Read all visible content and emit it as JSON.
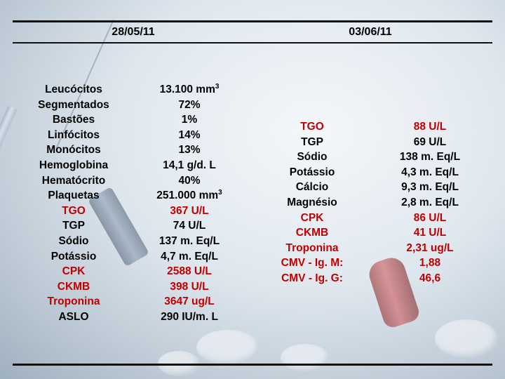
{
  "dates": {
    "first": "28/05/11",
    "second": "03/06/11"
  },
  "colors": {
    "highlight": "#c00000",
    "text": "#000000"
  },
  "table1": {
    "rows": [
      {
        "name": "Leucócitos",
        "value": "13.100 mm",
        "sup": "3",
        "highlight": false
      },
      {
        "name": "Segmentados",
        "value": "72%",
        "highlight": false
      },
      {
        "name": "Bastões",
        "value": "1%",
        "highlight": false
      },
      {
        "name": "Linfócitos",
        "value": "14%",
        "highlight": false
      },
      {
        "name": "Monócitos",
        "value": "13%",
        "highlight": false
      },
      {
        "name": "Hemoglobina",
        "value": "14,1 g/d. L",
        "highlight": false
      },
      {
        "name": "Hematócrito",
        "value": "40%",
        "highlight": false
      },
      {
        "name": "Plaquetas",
        "value": "251.000 mm",
        "sup": "3",
        "highlight": false
      },
      {
        "name": "TGO",
        "value": "367 U/L",
        "highlight": true
      },
      {
        "name": "TGP",
        "value": "74 U/L",
        "highlight": false
      },
      {
        "name": "Sódio",
        "value": "137 m. Eq/L",
        "highlight": false
      },
      {
        "name": "Potássio",
        "value": "4,7 m. Eq/L",
        "highlight": false
      },
      {
        "name": "CPK",
        "value": "2588 U/L",
        "highlight": true
      },
      {
        "name": "CKMB",
        "value": "398 U/L",
        "highlight": true
      },
      {
        "name": "Troponina",
        "value": "3647 ug/L",
        "highlight": true
      },
      {
        "name": "ASLO",
        "value": "290 IU/m. L",
        "highlight": false
      }
    ]
  },
  "table2": {
    "rows": [
      {
        "name": "TGO",
        "value": "88 U/L",
        "highlight": true
      },
      {
        "name": "TGP",
        "value": "69 U/L",
        "highlight": false
      },
      {
        "name": "Sódio",
        "value": "138 m. Eq/L",
        "highlight": false
      },
      {
        "name": "Potássio",
        "value": "4,3 m. Eq/L",
        "highlight": false
      },
      {
        "name": "Cálcio",
        "value": "9,3 m. Eq/L",
        "highlight": false
      },
      {
        "name": "Magnésio",
        "value": "2,8 m. Eq/L",
        "highlight": false
      },
      {
        "name": "CPK",
        "value": "86 U/L",
        "highlight": true
      },
      {
        "name": "CKMB",
        "value": "41 U/L",
        "highlight": true
      },
      {
        "name": "Troponina",
        "value": "2,31 ug/L",
        "highlight": true
      },
      {
        "name": "CMV - Ig. M:",
        "value": "1,88",
        "highlight": true
      },
      {
        "name": "CMV - Ig. G:",
        "value": "46,6",
        "highlight": true
      }
    ]
  }
}
